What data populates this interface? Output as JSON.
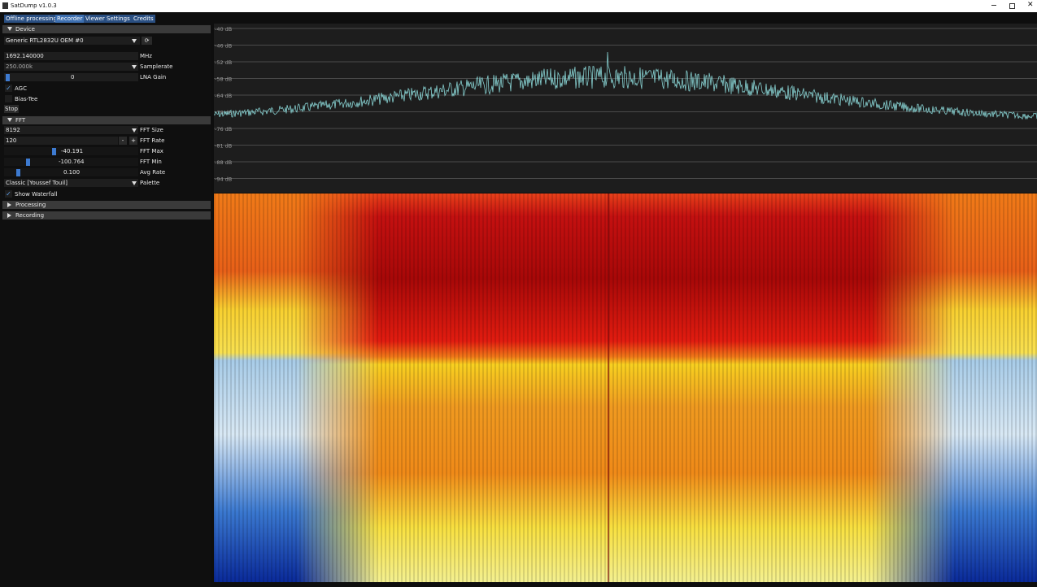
{
  "window": {
    "title": "SatDump v1.0.3"
  },
  "tabs": [
    "Offline processing",
    "Recorder",
    "Viewer",
    "Settings",
    "Credits"
  ],
  "device": {
    "header": "Device",
    "source": "Generic RTL2832U OEM #0",
    "frequency": "1692.140000",
    "frequency_unit": "MHz",
    "samplerate": "250.000k",
    "samplerate_label": "Samplerate",
    "lna_gain": "0",
    "lna_gain_label": "LNA Gain",
    "agc": "AGC",
    "bias_tee": "Bias-Tee",
    "stop": "Stop"
  },
  "fft": {
    "header": "FFT",
    "size": "8192",
    "size_label": "FFT Size",
    "rate": "120",
    "minus": "-",
    "plus": "+",
    "rate_label": "FFT Rate",
    "max": "-40.191",
    "max_label": "FFT Max",
    "min": "-100.764",
    "min_label": "FFT Min",
    "avg_rate": "0.100",
    "avg_rate_label": "Avg Rate",
    "palette": "Classic [Youssef Touil]",
    "palette_label": "Palette",
    "show_waterfall": "Show Waterfall"
  },
  "sections": [
    "Processing",
    "Recording"
  ],
  "spectrum": {
    "db_labels": [
      "-40 dB",
      "-46 dB",
      "-52 dB",
      "-58 dB",
      "-64 dB",
      "-70 dB",
      "-76 dB",
      "-81 dB",
      "-88 dB",
      "-94 dB"
    ]
  }
}
